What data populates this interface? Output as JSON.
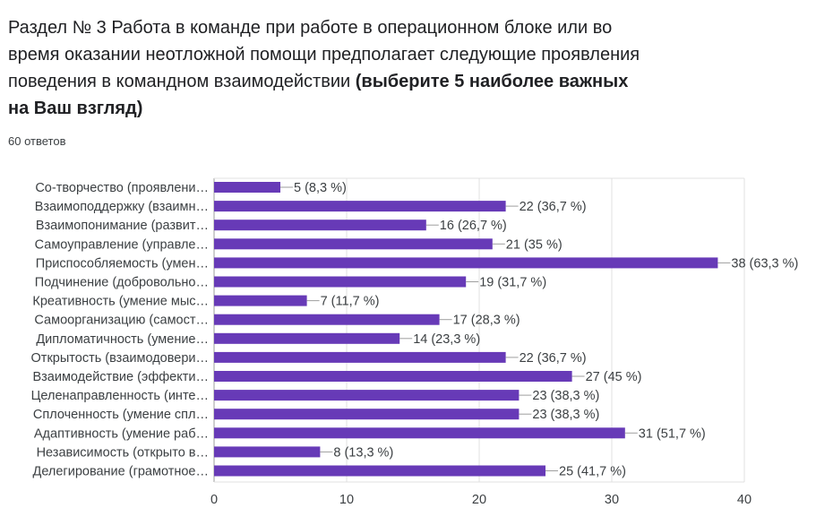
{
  "question": {
    "title_regular": "Раздел № 3 Работа в команде при работе в операционном блоке или во время оказании неотложной помощи предполагает следующие проявления поведения в командном взаимодействии ",
    "title_bold": "(выберите 5 наиболее важных на Ваш взгляд)",
    "responses": "60 ответов"
  },
  "colors": {
    "bar": "#673ab7",
    "grid": "#e0e0e0",
    "axis": "#9e9e9e",
    "leader": "#9e9e9e"
  },
  "chart_data": {
    "type": "bar",
    "orientation": "horizontal",
    "categories": [
      "Со-творчество (проявлени…",
      "Взаимоподдержку (взаимн…",
      "Взаимопонимание (развит…",
      "Самоуправление (управле…",
      "Приспособляемость (умен…",
      "Подчинение (добровольно…",
      "Креативность (умение мыс…",
      "Самоорганизацию (самост…",
      "Дипломатичность (умение…",
      "Открытость (взаимодовери…",
      "Взаимодействие (эффекти…",
      "Целенаправленность (инте…",
      "Сплоченность (умение спл…",
      "Адаптивность (умение раб…",
      "Независимость (открыто в…",
      "Делегирование (грамотное…"
    ],
    "values": [
      5,
      22,
      16,
      21,
      38,
      19,
      7,
      17,
      14,
      22,
      27,
      23,
      23,
      31,
      8,
      25
    ],
    "value_labels": [
      "5 (8,3 %)",
      "22 (36,7 %)",
      "16 (26,7 %)",
      "21 (35 %)",
      "38 (63,3 %)",
      "19 (31,7 %)",
      "7 (11,7 %)",
      "17 (28,3 %)",
      "14 (23,3 %)",
      "22 (36,7 %)",
      "27 (45 %)",
      "23 (38,3 %)",
      "23 (38,3 %)",
      "31 (51,7 %)",
      "8 (13,3 %)",
      "25 (41,7 %)"
    ],
    "xlim": [
      0,
      40
    ],
    "xticks": [
      "0",
      "10",
      "20",
      "30",
      "40"
    ],
    "grid": true
  }
}
